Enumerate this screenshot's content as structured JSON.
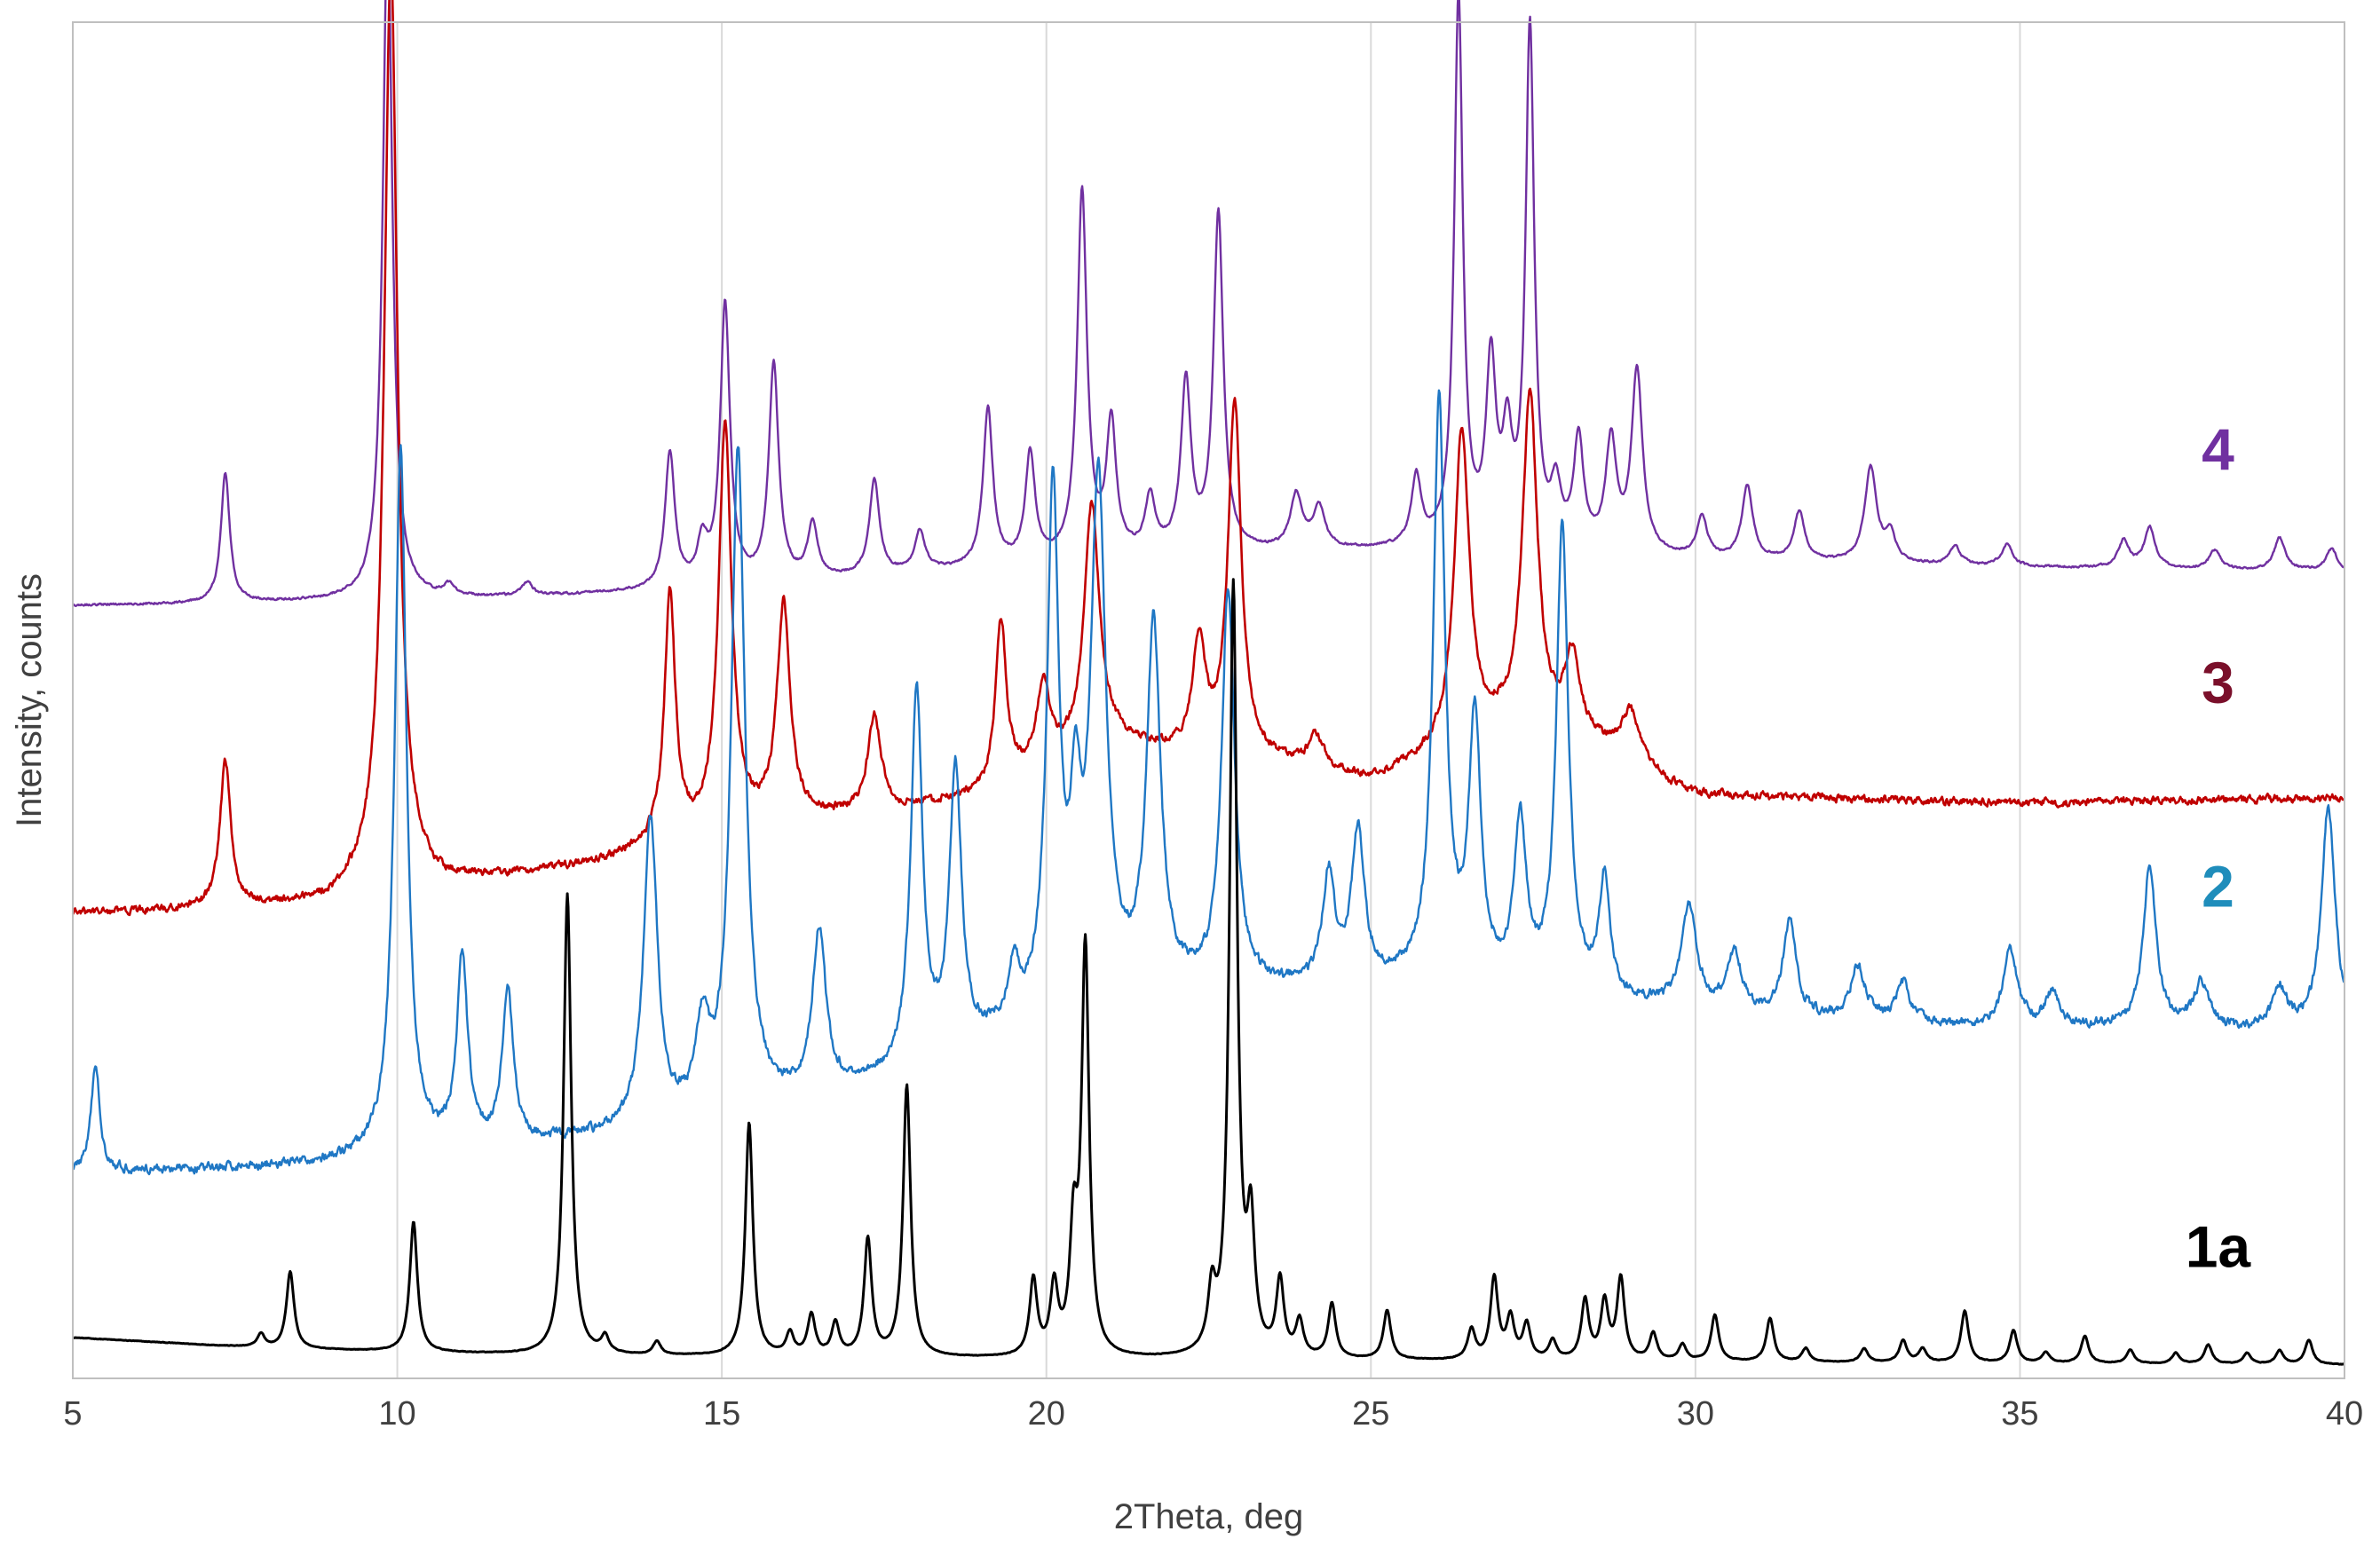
{
  "chart_data": {
    "type": "line",
    "title": "",
    "xlabel": "2Theta, deg",
    "ylabel": "Intensity, counts",
    "xlim": [
      5,
      40
    ],
    "x_ticks": [
      5,
      10,
      15,
      20,
      25,
      30,
      35,
      40
    ],
    "x_tick_labels": [
      "5",
      "10",
      "15",
      "20",
      "25",
      "30",
      "35",
      "40"
    ],
    "grid": "vertical",
    "y_ticks_shown": false,
    "ylim": [
      0,
      1000
    ],
    "series": [
      {
        "name": "1a",
        "color": "#000000",
        "noise": 0.4,
        "linewidth": 3,
        "baseline": [
          [
            5,
            30
          ],
          [
            8,
            22
          ],
          [
            12,
            17
          ],
          [
            20,
            14
          ],
          [
            30,
            12
          ],
          [
            40,
            10
          ]
        ],
        "peaks": [
          [
            7.9,
            10,
            0.07
          ],
          [
            8.35,
            57,
            0.07
          ],
          [
            10.25,
            96,
            0.07
          ],
          [
            12.62,
            340,
            0.07
          ],
          [
            13.2,
            12,
            0.07
          ],
          [
            14.0,
            10,
            0.07
          ],
          [
            15.42,
            172,
            0.07
          ],
          [
            16.05,
            16,
            0.07
          ],
          [
            16.38,
            30,
            0.07
          ],
          [
            16.75,
            24,
            0.07
          ],
          [
            17.25,
            86,
            0.07
          ],
          [
            17.85,
            200,
            0.07
          ],
          [
            19.8,
            56,
            0.07
          ],
          [
            20.12,
            50,
            0.07
          ],
          [
            20.42,
            85,
            0.07
          ],
          [
            20.6,
            300,
            0.07
          ],
          [
            22.55,
            42,
            0.07
          ],
          [
            22.88,
            567,
            0.07
          ],
          [
            23.15,
            90,
            0.07
          ],
          [
            23.6,
            55,
            0.07
          ],
          [
            23.9,
            26,
            0.07
          ],
          [
            24.4,
            40,
            0.07
          ],
          [
            25.25,
            36,
            0.07
          ],
          [
            26.55,
            22,
            0.07
          ],
          [
            26.9,
            60,
            0.07
          ],
          [
            27.15,
            30,
            0.07
          ],
          [
            27.4,
            26,
            0.07
          ],
          [
            27.8,
            14,
            0.07
          ],
          [
            28.3,
            44,
            0.07
          ],
          [
            28.6,
            42,
            0.07
          ],
          [
            28.85,
            60,
            0.07
          ],
          [
            29.35,
            20,
            0.07
          ],
          [
            29.8,
            12,
            0.07
          ],
          [
            30.3,
            34,
            0.07
          ],
          [
            31.15,
            32,
            0.07
          ],
          [
            31.7,
            10,
            0.07
          ],
          [
            32.6,
            10,
            0.07
          ],
          [
            33.2,
            16,
            0.07
          ],
          [
            33.5,
            10,
            0.07
          ],
          [
            34.15,
            38,
            0.07
          ],
          [
            34.9,
            24,
            0.07
          ],
          [
            35.4,
            8,
            0.07
          ],
          [
            36.0,
            20,
            0.07
          ],
          [
            36.7,
            10,
            0.07
          ],
          [
            37.4,
            8,
            0.07
          ],
          [
            37.9,
            14,
            0.07
          ],
          [
            38.5,
            8,
            0.07
          ],
          [
            39.0,
            10,
            0.07
          ],
          [
            39.45,
            18,
            0.07
          ]
        ]
      },
      {
        "name": "2",
        "color": "#1f77c4",
        "noise": 6,
        "linewidth": 2.4,
        "baseline": [
          [
            5,
            152
          ],
          [
            7,
            154
          ],
          [
            9,
            158
          ],
          [
            12,
            172
          ],
          [
            14,
            180
          ],
          [
            18,
            222
          ],
          [
            20,
            262
          ],
          [
            22,
            282
          ],
          [
            26,
            290
          ],
          [
            30,
            270
          ],
          [
            33,
            260
          ],
          [
            36,
            258
          ],
          [
            40,
            252
          ]
        ],
        "peaks": [
          [
            5.35,
            78,
            0.08
          ],
          [
            10.05,
            520,
            0.11
          ],
          [
            11.0,
            138,
            0.1
          ],
          [
            11.7,
            112,
            0.1
          ],
          [
            13.9,
            228,
            0.13
          ],
          [
            14.7,
            60,
            0.12
          ],
          [
            15.25,
            486,
            0.13
          ],
          [
            16.5,
            120,
            0.12
          ],
          [
            18.0,
            278,
            0.11
          ],
          [
            18.6,
            208,
            0.11
          ],
          [
            19.5,
            40,
            0.1
          ],
          [
            20.1,
            380,
            0.11
          ],
          [
            20.45,
            120,
            0.1
          ],
          [
            20.8,
            382,
            0.14
          ],
          [
            21.65,
            268,
            0.13
          ],
          [
            22.8,
            292,
            0.12
          ],
          [
            24.35,
            80,
            0.11
          ],
          [
            24.8,
            110,
            0.12
          ],
          [
            26.05,
            426,
            0.11
          ],
          [
            26.6,
            192,
            0.11
          ],
          [
            27.3,
            120,
            0.11
          ],
          [
            27.95,
            345,
            0.11
          ],
          [
            28.6,
            86,
            0.1
          ],
          [
            29.9,
            75,
            0.14
          ],
          [
            30.6,
            42,
            0.13
          ],
          [
            31.45,
            70,
            0.12
          ],
          [
            32.5,
            40,
            0.14
          ],
          [
            33.2,
            30,
            0.13
          ],
          [
            34.85,
            55,
            0.13
          ],
          [
            35.5,
            24,
            0.13
          ],
          [
            37.0,
            120,
            0.12
          ],
          [
            37.8,
            34,
            0.15
          ],
          [
            39.0,
            32,
            0.14
          ],
          [
            39.75,
            168,
            0.13
          ]
        ]
      },
      {
        "name": "3",
        "color": "#c00000",
        "noise": 5,
        "linewidth": 2.6,
        "baseline": [
          [
            5,
            343
          ],
          [
            7,
            345
          ],
          [
            8,
            348
          ],
          [
            9,
            352
          ],
          [
            10,
            380
          ],
          [
            10.6,
            364
          ],
          [
            12,
            372
          ],
          [
            13,
            378
          ],
          [
            14,
            392
          ],
          [
            16,
            410
          ],
          [
            18,
            420
          ],
          [
            19,
            428
          ],
          [
            20,
            450
          ],
          [
            21,
            468
          ],
          [
            22,
            460
          ],
          [
            23,
            458
          ],
          [
            25,
            440
          ],
          [
            26,
            458
          ],
          [
            27,
            475
          ],
          [
            28,
            470
          ],
          [
            29,
            460
          ],
          [
            29.5,
            440
          ],
          [
            30,
            430
          ],
          [
            35,
            424
          ],
          [
            40,
            428
          ]
        ],
        "peaks": [
          [
            7.35,
            108,
            0.1
          ],
          [
            9.9,
            668,
            0.12
          ],
          [
            14.2,
            182,
            0.1
          ],
          [
            15.05,
            300,
            0.12
          ],
          [
            15.95,
            158,
            0.12
          ],
          [
            17.35,
            70,
            0.12
          ],
          [
            19.3,
            122,
            0.1
          ],
          [
            19.95,
            60,
            0.12
          ],
          [
            20.7,
            180,
            0.14
          ],
          [
            22.35,
            80,
            0.12
          ],
          [
            22.9,
            260,
            0.12
          ],
          [
            24.15,
            24,
            0.14
          ],
          [
            26.4,
            232,
            0.14
          ],
          [
            27.45,
            250,
            0.14
          ],
          [
            28.1,
            60,
            0.14
          ],
          [
            29.0,
            30,
            0.16
          ]
        ]
      },
      {
        "name": "4",
        "color": "#7030a0",
        "noise": 1.5,
        "linewidth": 2.4,
        "baseline": [
          [
            5,
            570
          ],
          [
            7,
            571
          ],
          [
            9,
            573
          ],
          [
            12,
            576
          ],
          [
            14,
            580
          ],
          [
            17,
            590
          ],
          [
            20,
            600
          ],
          [
            22,
            608
          ],
          [
            25,
            610
          ],
          [
            27,
            612
          ],
          [
            30,
            603
          ],
          [
            35,
            598
          ],
          [
            40,
            595
          ]
        ],
        "peaks": [
          [
            7.35,
            96,
            0.08
          ],
          [
            9.85,
            500,
            0.09
          ],
          [
            10.8,
            8,
            0.1
          ],
          [
            12.0,
            10,
            0.1
          ],
          [
            14.2,
            100,
            0.09
          ],
          [
            14.7,
            30,
            0.09
          ],
          [
            15.05,
            206,
            0.09
          ],
          [
            15.8,
            160,
            0.09
          ],
          [
            16.4,
            40,
            0.09
          ],
          [
            17.35,
            70,
            0.09
          ],
          [
            18.05,
            30,
            0.09
          ],
          [
            19.1,
            116,
            0.09
          ],
          [
            19.75,
            80,
            0.09
          ],
          [
            20.55,
            270,
            0.09
          ],
          [
            21.0,
            96,
            0.09
          ],
          [
            21.6,
            40,
            0.09
          ],
          [
            22.15,
            124,
            0.09
          ],
          [
            22.65,
            248,
            0.09
          ],
          [
            23.85,
            40,
            0.11
          ],
          [
            24.2,
            30,
            0.11
          ],
          [
            25.7,
            50,
            0.09
          ],
          [
            26.35,
            404,
            0.08
          ],
          [
            26.85,
            130,
            0.09
          ],
          [
            27.1,
            70,
            0.09
          ],
          [
            27.45,
            380,
            0.08
          ],
          [
            27.85,
            40,
            0.09
          ],
          [
            28.2,
            80,
            0.09
          ],
          [
            28.7,
            80,
            0.1
          ],
          [
            29.1,
            134,
            0.1
          ],
          [
            30.1,
            30,
            0.1
          ],
          [
            30.8,
            54,
            0.1
          ],
          [
            31.6,
            36,
            0.1
          ],
          [
            32.7,
            70,
            0.11
          ],
          [
            33.0,
            20,
            0.1
          ],
          [
            34.0,
            14,
            0.1
          ],
          [
            34.8,
            16,
            0.1
          ],
          [
            36.6,
            20,
            0.1
          ],
          [
            37.0,
            30,
            0.1
          ],
          [
            38.0,
            14,
            0.1
          ],
          [
            39.0,
            24,
            0.1
          ],
          [
            39.8,
            16,
            0.1
          ]
        ]
      }
    ],
    "series_labels": [
      {
        "text": "4",
        "x": 38.05,
        "y": 670,
        "color": "#7030a0"
      },
      {
        "text": "3",
        "x": 38.05,
        "y": 498,
        "color": "#7a0f2a"
      },
      {
        "text": "2",
        "x": 38.05,
        "y": 348,
        "color": "#1f8dbb"
      },
      {
        "text": "1a",
        "x": 38.05,
        "y": 82,
        "color": "#000000"
      }
    ]
  }
}
